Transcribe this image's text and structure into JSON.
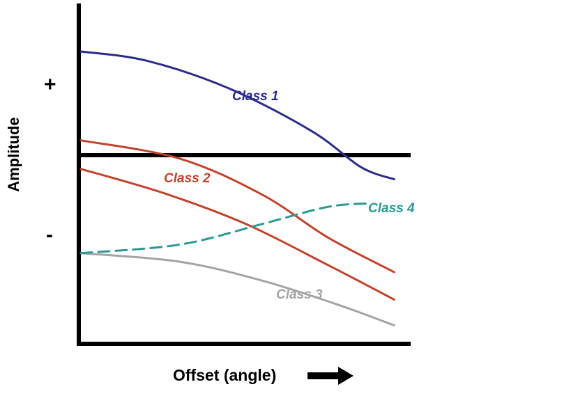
{
  "chart_data": {
    "type": "line",
    "title": "",
    "xlabel": "Offset (angle)",
    "ylabel": "Amplitude",
    "xlim": [
      0,
      1
    ],
    "ylim": [
      -1,
      1
    ],
    "x_axis_arrow": "right",
    "y_sign_labels": {
      "positive": "+",
      "negative": "-"
    },
    "zero_line": true,
    "grid": false,
    "legend": "inline",
    "series": [
      {
        "name": "Class 1",
        "color": "#2b2b8a",
        "style": "solid",
        "points": [
          [
            0.0,
            0.56
          ],
          [
            0.2,
            0.51
          ],
          [
            0.45,
            0.36
          ],
          [
            0.7,
            0.13
          ],
          [
            0.85,
            -0.07
          ],
          [
            0.95,
            -0.14
          ]
        ]
      },
      {
        "name": "Class 2",
        "color": "#c0432c",
        "style": "solid",
        "points": [
          [
            0.0,
            0.08
          ],
          [
            0.3,
            -0.02
          ],
          [
            0.55,
            -0.23
          ],
          [
            0.75,
            -0.48
          ],
          [
            0.95,
            -0.68
          ]
        ]
      },
      {
        "name": "Class 2",
        "color": "#c0432c",
        "style": "solid",
        "points": [
          [
            0.0,
            -0.08
          ],
          [
            0.25,
            -0.22
          ],
          [
            0.5,
            -0.4
          ],
          [
            0.75,
            -0.64
          ],
          [
            0.95,
            -0.84
          ]
        ]
      },
      {
        "name": "Class 3",
        "color": "#a3a3a3",
        "style": "solid",
        "points": [
          [
            0.0,
            -0.57
          ],
          [
            0.3,
            -0.62
          ],
          [
            0.55,
            -0.73
          ],
          [
            0.78,
            -0.87
          ],
          [
            0.95,
            -0.99
          ]
        ]
      },
      {
        "name": "Class 4",
        "color": "#2a9993",
        "style": "dashed",
        "points": [
          [
            0.0,
            -0.57
          ],
          [
            0.3,
            -0.52
          ],
          [
            0.55,
            -0.4
          ],
          [
            0.75,
            -0.3
          ],
          [
            0.88,
            -0.28
          ]
        ]
      }
    ],
    "labels": {
      "class1": "Class 1",
      "class2": "Class 2",
      "class3": "Class 3",
      "class4": "Class 4"
    }
  }
}
